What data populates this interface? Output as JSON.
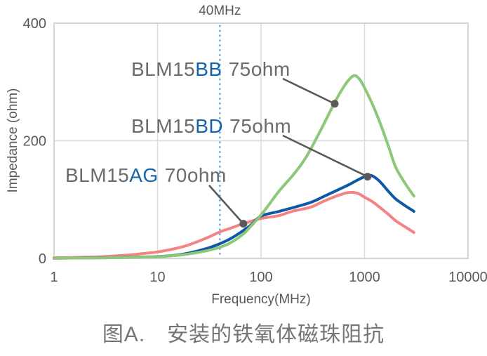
{
  "caption": {
    "text": "图A.　安装的铁氧体磁珠阻抗",
    "color": "#757575"
  },
  "chart_data": {
    "type": "line",
    "title": "",
    "xlabel": "Frequency(MHz)",
    "ylabel": "Impedance (ohm)",
    "x_scale": "log",
    "xlim": [
      1,
      10000
    ],
    "ylim": [
      0,
      400
    ],
    "x_ticks": [
      1,
      10,
      100,
      1000,
      10000
    ],
    "x_tick_labels": [
      "1",
      "10",
      "100",
      "1000",
      "10000"
    ],
    "y_ticks": [
      0,
      200,
      400
    ],
    "y_tick_labels": [
      "0",
      "200",
      "400"
    ],
    "x_gridlines": [
      10,
      100,
      1000
    ],
    "y_gridlines": [
      200
    ],
    "grid_on": true,
    "legend_position": "none",
    "grid_color": "#d9d9d9",
    "border_color": "#c9c9c9",
    "tick_text_color": "#595959",
    "axis_title_color": "#595959",
    "marker_line": {
      "freq_mhz": 40,
      "label": "40MHz",
      "color": "#7fb2e1",
      "label_color": "#595959"
    },
    "series": [
      {
        "name": "BLM15AG",
        "spec": "70ohm",
        "color": "#f48484",
        "points": [
          [
            1,
            1
          ],
          [
            2,
            2
          ],
          [
            3,
            3
          ],
          [
            5,
            5.5
          ],
          [
            7,
            8
          ],
          [
            10,
            11
          ],
          [
            15,
            17
          ],
          [
            20,
            23
          ],
          [
            30,
            35
          ],
          [
            40,
            45
          ],
          [
            50,
            51
          ],
          [
            67,
            59
          ],
          [
            80,
            63
          ],
          [
            100,
            68
          ],
          [
            150,
            73
          ],
          [
            200,
            80
          ],
          [
            300,
            87
          ],
          [
            400,
            97
          ],
          [
            500,
            104
          ],
          [
            600,
            109
          ],
          [
            700,
            112
          ],
          [
            800,
            112
          ],
          [
            900,
            109
          ],
          [
            1000,
            104
          ],
          [
            1200,
            96
          ],
          [
            1400,
            87
          ],
          [
            1700,
            75
          ],
          [
            2000,
            64
          ],
          [
            2500,
            53
          ],
          [
            3000,
            44
          ]
        ]
      },
      {
        "name": "BLM15BD",
        "spec": "75ohm",
        "color": "#0e59a6",
        "points": [
          [
            1,
            0.4
          ],
          [
            2,
            0.8
          ],
          [
            3,
            1.2
          ],
          [
            5,
            1.8
          ],
          [
            7,
            2.4
          ],
          [
            10,
            3
          ],
          [
            15,
            5.5
          ],
          [
            20,
            9
          ],
          [
            30,
            17
          ],
          [
            40,
            25
          ],
          [
            50,
            33
          ],
          [
            67,
            47
          ],
          [
            80,
            57
          ],
          [
            100,
            72
          ],
          [
            150,
            80
          ],
          [
            200,
            86
          ],
          [
            300,
            95
          ],
          [
            400,
            105
          ],
          [
            500,
            113
          ],
          [
            700,
            125
          ],
          [
            850,
            133
          ],
          [
            1000,
            139
          ],
          [
            1100,
            141
          ],
          [
            1200,
            140
          ],
          [
            1400,
            131
          ],
          [
            1700,
            114
          ],
          [
            2000,
            101
          ],
          [
            2500,
            89
          ],
          [
            3000,
            80
          ]
        ]
      },
      {
        "name": "BLM15BB",
        "spec": "75ohm",
        "color": "#8cc878",
        "points": [
          [
            1,
            0.3
          ],
          [
            2,
            0.7
          ],
          [
            3,
            1
          ],
          [
            5,
            1.6
          ],
          [
            7,
            2.1
          ],
          [
            10,
            2.8
          ],
          [
            15,
            5
          ],
          [
            20,
            7.5
          ],
          [
            30,
            13
          ],
          [
            40,
            19
          ],
          [
            50,
            26
          ],
          [
            67,
            41
          ],
          [
            80,
            55
          ],
          [
            100,
            74
          ],
          [
            120,
            92
          ],
          [
            150,
            115
          ],
          [
            200,
            140
          ],
          [
            250,
            162
          ],
          [
            300,
            185
          ],
          [
            400,
            227
          ],
          [
            500,
            261
          ],
          [
            600,
            286
          ],
          [
            700,
            303
          ],
          [
            800,
            311
          ],
          [
            900,
            304
          ],
          [
            1000,
            290
          ],
          [
            1200,
            261
          ],
          [
            1400,
            232
          ],
          [
            1700,
            191
          ],
          [
            2000,
            155
          ],
          [
            2500,
            126
          ],
          [
            3000,
            106
          ]
        ]
      }
    ],
    "callouts": [
      {
        "prefix": "BLM15",
        "code": "BB",
        "suffix": "75ohm",
        "label_x": 187,
        "label_y": 108,
        "anchor_x": 403,
        "anchor_y": 112,
        "target_freq": 515,
        "target_ohm": 263
      },
      {
        "prefix": "BLM15",
        "code": "BD",
        "suffix": "75ohm",
        "label_x": 187,
        "label_y": 189,
        "anchor_x": 403,
        "anchor_y": 193,
        "target_freq": 1070,
        "target_ohm": 139
      },
      {
        "prefix": "BLM15",
        "code": "AG",
        "suffix": "70ohm",
        "label_x": 93,
        "label_y": 259,
        "anchor_x": 298,
        "anchor_y": 264,
        "target_freq": 67.5,
        "target_ohm": 59
      }
    ],
    "callout_color": "#595959",
    "callout_label_gray": "#6b6b6b",
    "callout_label_blue": "#1563ac"
  }
}
